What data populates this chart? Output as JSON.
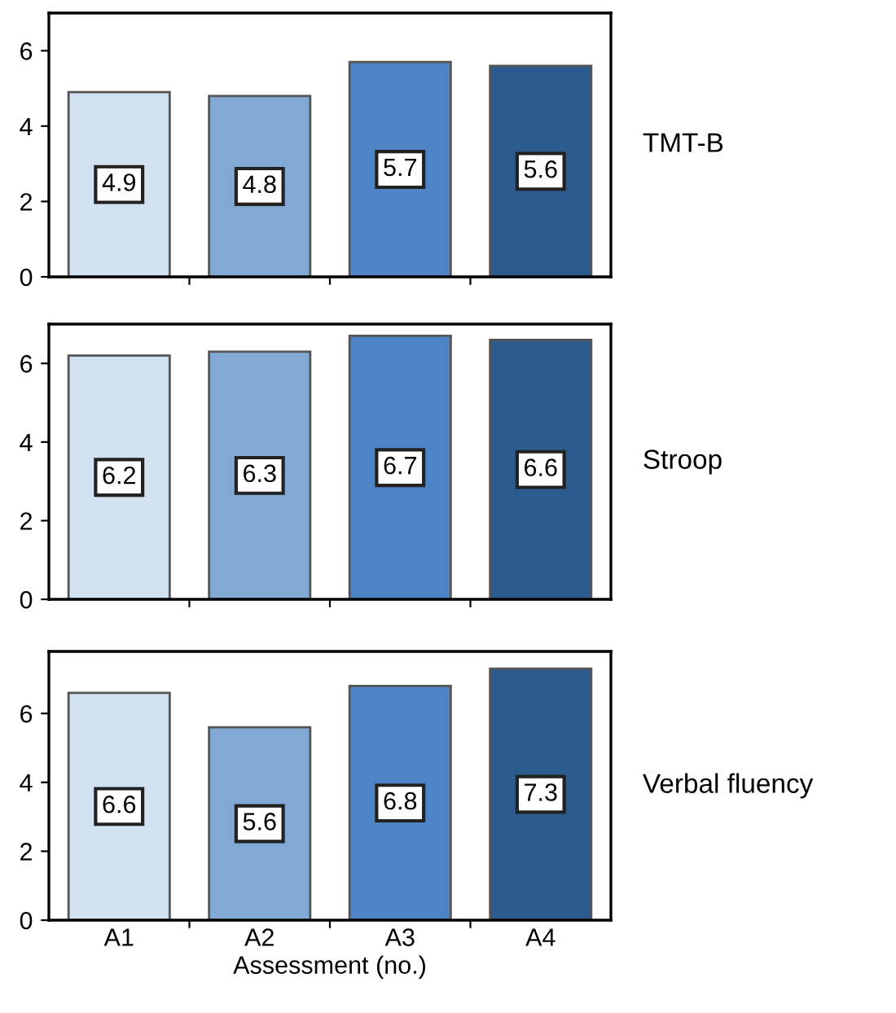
{
  "chart_data": [
    {
      "type": "bar",
      "y2label": "TMT-B",
      "categories": [
        null,
        null,
        null,
        null
      ],
      "values": [
        4.9,
        4.8,
        5.7,
        5.6
      ],
      "colors": [
        "#d3e2f0",
        "#82a9d3",
        "#4d84c8",
        "#2c5b8e"
      ],
      "ylim": [
        0,
        7
      ],
      "yticks": [
        0,
        2,
        4,
        6
      ],
      "data_labels": true,
      "tick_labels": "y"
    },
    {
      "type": "bar",
      "y2label": "Stroop",
      "categories": [
        null,
        null,
        null,
        null
      ],
      "values": [
        6.2,
        6.3,
        6.7,
        6.6
      ],
      "colors": [
        "#d3e2f0",
        "#82a9d3",
        "#4d84c8",
        "#2c5b8e"
      ],
      "ylim": [
        0,
        7
      ],
      "yticks": [
        0,
        2,
        4,
        6
      ],
      "data_labels": true,
      "tick_labels": "y"
    },
    {
      "type": "bar",
      "y2label": "Verbal fluency",
      "xlabel": "Assessment (no.)",
      "categories": [
        "A1",
        "A2",
        "A3",
        "A4"
      ],
      "values": [
        6.6,
        5.6,
        6.8,
        7.3
      ],
      "colors": [
        "#d3e2f0",
        "#82a9d3",
        "#4d84c8",
        "#2c5b8e"
      ],
      "ylim": [
        0,
        7.8
      ],
      "yticks": [
        0,
        2,
        4,
        6
      ],
      "data_labels": true
    }
  ]
}
